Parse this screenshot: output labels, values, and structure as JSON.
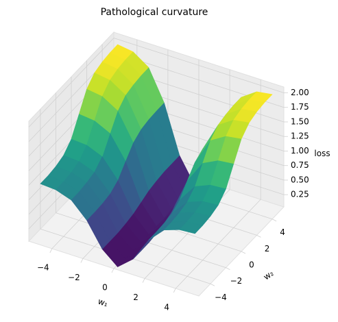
{
  "chart_data": {
    "type": "surface",
    "title": "Pathological curvature",
    "xlabel": "w₁",
    "ylabel": "w₂",
    "zlabel": "loss",
    "x": [
      -5,
      -4,
      -3,
      -2,
      -1,
      0,
      1,
      2,
      3,
      4,
      5
    ],
    "y": [
      -5,
      -4,
      -3,
      -2,
      -1,
      0,
      1,
      2,
      3,
      4,
      5
    ],
    "z": [
      [
        1.0,
        0.98,
        0.89,
        0.63,
        0.22,
        0,
        0.22,
        0.63,
        0.89,
        0.98,
        1.0
      ],
      [
        1.0,
        0.98,
        0.89,
        0.63,
        0.22,
        0,
        0.22,
        0.63,
        0.89,
        0.98,
        1.0
      ],
      [
        1.02,
        1.0,
        0.91,
        0.64,
        0.22,
        0,
        0.22,
        0.64,
        0.91,
        1.0,
        1.02
      ],
      [
        1.07,
        1.05,
        0.95,
        0.67,
        0.24,
        0,
        0.24,
        0.67,
        0.95,
        1.05,
        1.07
      ],
      [
        1.21,
        1.19,
        1.08,
        0.76,
        0.27,
        0,
        0.27,
        0.76,
        1.08,
        1.19,
        1.21
      ],
      [
        1.5,
        1.47,
        1.34,
        0.95,
        0.33,
        0,
        0.33,
        0.95,
        1.34,
        1.47,
        1.5
      ],
      [
        1.79,
        1.75,
        1.59,
        1.13,
        0.39,
        0,
        0.39,
        1.13,
        1.59,
        1.75,
        1.79
      ],
      [
        1.93,
        1.89,
        1.72,
        1.22,
        0.42,
        0,
        0.42,
        1.22,
        1.72,
        1.89,
        1.93
      ],
      [
        1.98,
        1.94,
        1.76,
        1.25,
        0.44,
        0,
        0.44,
        1.25,
        1.76,
        1.94,
        1.98
      ],
      [
        2.0,
        1.96,
        1.78,
        1.26,
        0.44,
        0,
        0.44,
        1.26,
        1.78,
        1.96,
        2.0
      ],
      [
        2.0,
        1.96,
        1.78,
        1.26,
        0.44,
        0,
        0.44,
        1.26,
        1.78,
        1.96,
        2.0
      ]
    ],
    "xlim": [
      -5.5,
      5.5
    ],
    "ylim": [
      -5.5,
      5.5
    ],
    "zlim": [
      0.04,
      2.1
    ],
    "xticks": [
      {
        "value": -4,
        "label": "−4"
      },
      {
        "value": -2,
        "label": "−2"
      },
      0,
      2,
      4
    ],
    "yticks": [
      {
        "value": -4,
        "label": "−4"
      },
      {
        "value": -2,
        "label": "−2"
      },
      0,
      2,
      4
    ],
    "zticks": [
      0.25,
      {
        "value": 0.5,
        "label": "0.50"
      },
      0.75,
      {
        "value": 1,
        "label": "1.00"
      },
      1.25,
      {
        "value": 1.5,
        "label": "1.50"
      },
      1.75,
      {
        "value": 2,
        "label": "2.00"
      }
    ],
    "colormap": "viridis",
    "grid": true
  }
}
